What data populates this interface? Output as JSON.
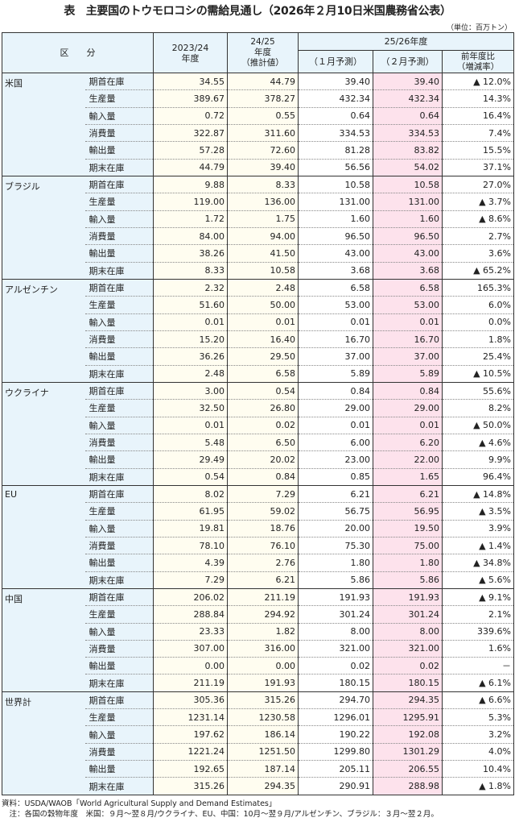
{
  "title": "表　主要国のトウモロコシの需給見通し（2026年２月10日米国農務省公表）",
  "unit": "（単位：百万トン）",
  "header": {
    "category": "区　　分",
    "c1": "2023/24\n年度",
    "c2": "24/25\n年度\n（推計値）",
    "group": "25/26年度",
    "c3": "（１月予測）",
    "c4": "（２月予測）",
    "c5": "前年度比\n（増減率）"
  },
  "colors": {
    "label_bg": "#e8f4fb",
    "past_bg": "#fffdf0",
    "feb_bg": "#fde2ec"
  },
  "sections": [
    {
      "country": "米国",
      "rows": [
        [
          "期首在庫",
          "34.55",
          "44.79",
          "39.40",
          "39.40",
          "▲ 12.0%"
        ],
        [
          "生産量",
          "389.67",
          "378.27",
          "432.34",
          "432.34",
          "14.3%"
        ],
        [
          "輸入量",
          "0.72",
          "0.55",
          "0.64",
          "0.64",
          "16.4%"
        ],
        [
          "消費量",
          "322.87",
          "311.60",
          "334.53",
          "334.53",
          "7.4%"
        ],
        [
          "輸出量",
          "57.28",
          "72.60",
          "81.28",
          "83.82",
          "15.5%"
        ],
        [
          "期末在庫",
          "44.79",
          "39.40",
          "56.56",
          "54.02",
          "37.1%"
        ]
      ]
    },
    {
      "country": "ブラジル",
      "rows": [
        [
          "期首在庫",
          "9.88",
          "8.33",
          "10.58",
          "10.58",
          "27.0%"
        ],
        [
          "生産量",
          "119.00",
          "136.00",
          "131.00",
          "131.00",
          "▲ 3.7%"
        ],
        [
          "輸入量",
          "1.72",
          "1.75",
          "1.60",
          "1.60",
          "▲ 8.6%"
        ],
        [
          "消費量",
          "84.00",
          "94.00",
          "96.50",
          "96.50",
          "2.7%"
        ],
        [
          "輸出量",
          "38.26",
          "41.50",
          "43.00",
          "43.00",
          "3.6%"
        ],
        [
          "期末在庫",
          "8.33",
          "10.58",
          "3.68",
          "3.68",
          "▲ 65.2%"
        ]
      ]
    },
    {
      "country": "アルゼンチン",
      "rows": [
        [
          "期首在庫",
          "2.32",
          "2.48",
          "6.58",
          "6.58",
          "165.3%"
        ],
        [
          "生産量",
          "51.60",
          "50.00",
          "53.00",
          "53.00",
          "6.0%"
        ],
        [
          "輸入量",
          "0.01",
          "0.01",
          "0.01",
          "0.01",
          "0.0%"
        ],
        [
          "消費量",
          "15.20",
          "16.40",
          "16.70",
          "16.70",
          "1.8%"
        ],
        [
          "輸出量",
          "36.26",
          "29.50",
          "37.00",
          "37.00",
          "25.4%"
        ],
        [
          "期末在庫",
          "2.48",
          "6.58",
          "5.89",
          "5.89",
          "▲ 10.5%"
        ]
      ]
    },
    {
      "country": "ウクライナ",
      "rows": [
        [
          "期首在庫",
          "3.00",
          "0.54",
          "0.84",
          "0.84",
          "55.6%"
        ],
        [
          "生産量",
          "32.50",
          "26.80",
          "29.00",
          "29.00",
          "8.2%"
        ],
        [
          "輸入量",
          "0.01",
          "0.02",
          "0.01",
          "0.01",
          "▲ 50.0%"
        ],
        [
          "消費量",
          "5.48",
          "6.50",
          "6.00",
          "6.20",
          "▲ 4.6%"
        ],
        [
          "輸出量",
          "29.49",
          "20.02",
          "23.00",
          "22.00",
          "9.9%"
        ],
        [
          "期末在庫",
          "0.54",
          "0.84",
          "0.85",
          "1.65",
          "96.4%"
        ]
      ]
    },
    {
      "country": "EU",
      "rows": [
        [
          "期首在庫",
          "8.02",
          "7.29",
          "6.21",
          "6.21",
          "▲ 14.8%"
        ],
        [
          "生産量",
          "61.95",
          "59.02",
          "56.75",
          "56.95",
          "▲ 3.5%"
        ],
        [
          "輸入量",
          "19.81",
          "18.76",
          "20.00",
          "19.50",
          "3.9%"
        ],
        [
          "消費量",
          "78.10",
          "76.10",
          "75.30",
          "75.00",
          "▲ 1.4%"
        ],
        [
          "輸出量",
          "4.39",
          "2.76",
          "1.80",
          "1.80",
          "▲ 34.8%"
        ],
        [
          "期末在庫",
          "7.29",
          "6.21",
          "5.86",
          "5.86",
          "▲ 5.6%"
        ]
      ]
    },
    {
      "country": "中国",
      "rows": [
        [
          "期首在庫",
          "206.02",
          "211.19",
          "191.93",
          "191.93",
          "▲ 9.1%"
        ],
        [
          "生産量",
          "288.84",
          "294.92",
          "301.24",
          "301.24",
          "2.1%"
        ],
        [
          "輸入量",
          "23.33",
          "1.82",
          "8.00",
          "8.00",
          "339.6%"
        ],
        [
          "消費量",
          "307.00",
          "316.00",
          "321.00",
          "321.00",
          "1.6%"
        ],
        [
          "輸出量",
          "0.00",
          "0.00",
          "0.02",
          "0.02",
          "－"
        ],
        [
          "期末在庫",
          "211.19",
          "191.93",
          "180.15",
          "180.15",
          "▲ 6.1%"
        ]
      ]
    },
    {
      "country": "世界計",
      "rows": [
        [
          "期首在庫",
          "305.36",
          "315.26",
          "294.70",
          "294.35",
          "▲ 6.6%"
        ],
        [
          "生産量",
          "1231.14",
          "1230.58",
          "1296.01",
          "1295.91",
          "5.3%"
        ],
        [
          "輸入量",
          "197.62",
          "186.14",
          "190.22",
          "192.08",
          "3.2%"
        ],
        [
          "消費量",
          "1221.24",
          "1251.50",
          "1299.80",
          "1301.29",
          "4.0%"
        ],
        [
          "輸出量",
          "192.65",
          "187.14",
          "205.11",
          "206.55",
          "10.4%"
        ],
        [
          "期末在庫",
          "315.26",
          "294.35",
          "290.91",
          "288.98",
          "▲ 1.8%"
        ]
      ]
    }
  ],
  "notes": {
    "source": "資料：USDA/WAOB「World Agricultural Supply and Demand Estimates」",
    "note": "　注：各国の穀物年度　米国：９月～翌８月/ウクライナ、EU、中国：10月～翌９月/アルゼンチン、ブラジル：３月～翌２月。"
  }
}
